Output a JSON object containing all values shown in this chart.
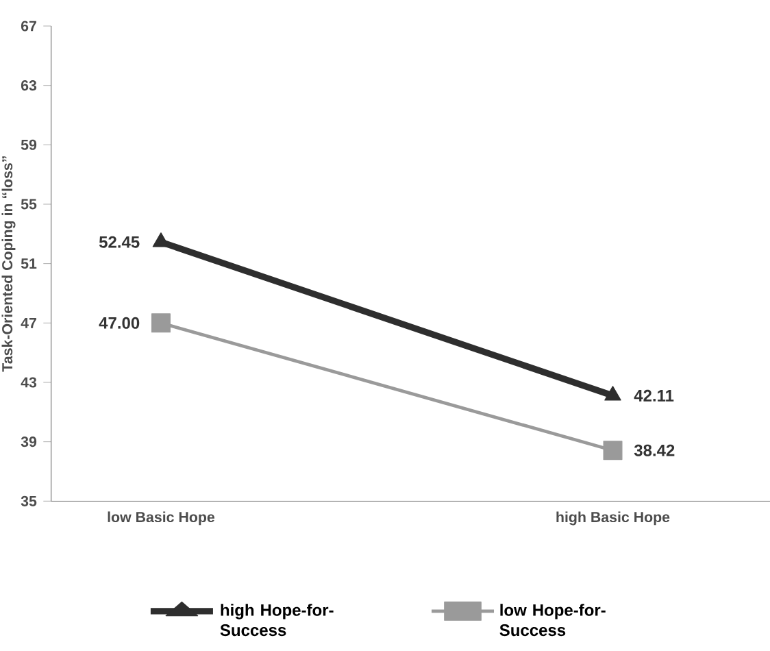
{
  "chart_data": {
    "type": "line",
    "ylabel": "Task-Oriented Coping in “loss”",
    "categories": [
      "low Basic Hope",
      "high Basic Hope"
    ],
    "series": [
      {
        "name": "high Hope-for-Success",
        "color": "#2e2e2e",
        "values": [
          52.45,
          42.11
        ],
        "marker": "triangle",
        "value_labels": [
          "52.45",
          "42.11"
        ]
      },
      {
        "name": "low Hope-for-Success",
        "color": "#9a9a9a",
        "values": [
          47.0,
          38.42
        ],
        "marker": "square",
        "value_labels": [
          "47.00",
          "38.42"
        ]
      }
    ],
    "ylim": [
      35,
      67
    ],
    "yticks": [
      35,
      39,
      43,
      47,
      51,
      55,
      59,
      63,
      67
    ],
    "grid": false,
    "legend": "bottom"
  }
}
